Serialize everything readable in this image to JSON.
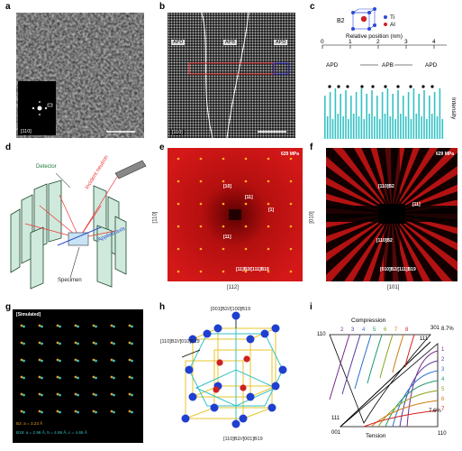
{
  "panel_labels": [
    "a",
    "b",
    "c",
    "d",
    "e",
    "f",
    "g",
    "h",
    "i"
  ],
  "a": {
    "inset_tag": "[110]"
  },
  "b": {
    "tag": "[110]",
    "apd_left": "APD",
    "apb": "APB",
    "apd_right": "APD"
  },
  "c": {
    "phase": "B2",
    "legend": [
      {
        "label": "Ti",
        "color": "#2a4bd7"
      },
      {
        "label": "Al",
        "color": "#cc2222"
      }
    ],
    "axis_title": "Relative position (nm)",
    "ticks": [
      "0",
      "1",
      "2",
      "3",
      "4"
    ],
    "region_left": "APD",
    "region_mid": "APB",
    "region_right": "APD",
    "ylabel": "Intensity",
    "bar_color": "#35c2c4"
  },
  "d": {
    "detector": "Detector",
    "neutron": "Incident neutron",
    "axis": "Applied axis",
    "specimen": "Specimen"
  },
  "e": {
    "stress": "629 MPa",
    "spots": [
      "[10]",
      "[11]",
      "[1]",
      "[11]",
      "[11]B2/[111]B19"
    ],
    "xlabel": "[112]",
    "ylabel": "[110]"
  },
  "f": {
    "stress": "629 MPa",
    "spots": [
      "[110]B2",
      "[11]",
      "[110]B2",
      "[010]B2/[111]B19"
    ],
    "xlabel": "[101]",
    "ylabel": "[010]"
  },
  "g": {
    "tag": "[Simulated]",
    "legend": [
      {
        "label": "B2: a = 3.23 Å",
        "color": "#e6a020"
      },
      {
        "label": "B19: a = 2.96 Å, b = 4.59 Å, c = 4.65 Å",
        "color": "#35c2c4"
      }
    ]
  },
  "h": {
    "top": "[001]B2//[100]B19",
    "left": "[110]B2//[010]B19",
    "bottom": "[110]B2//[001]B19"
  },
  "i": {
    "compression": "Compression",
    "tension": "Tension",
    "c110": "110",
    "c001": "001",
    "c111": "111",
    "c301": "301",
    "pct_top": "8.7%",
    "pct_bottom": "7.6%",
    "num_top": [
      "2",
      "3",
      "4",
      "5",
      "6",
      "7",
      "8"
    ],
    "num_side": [
      "1",
      "2",
      "3",
      "4",
      "5",
      "6",
      "7"
    ]
  }
}
